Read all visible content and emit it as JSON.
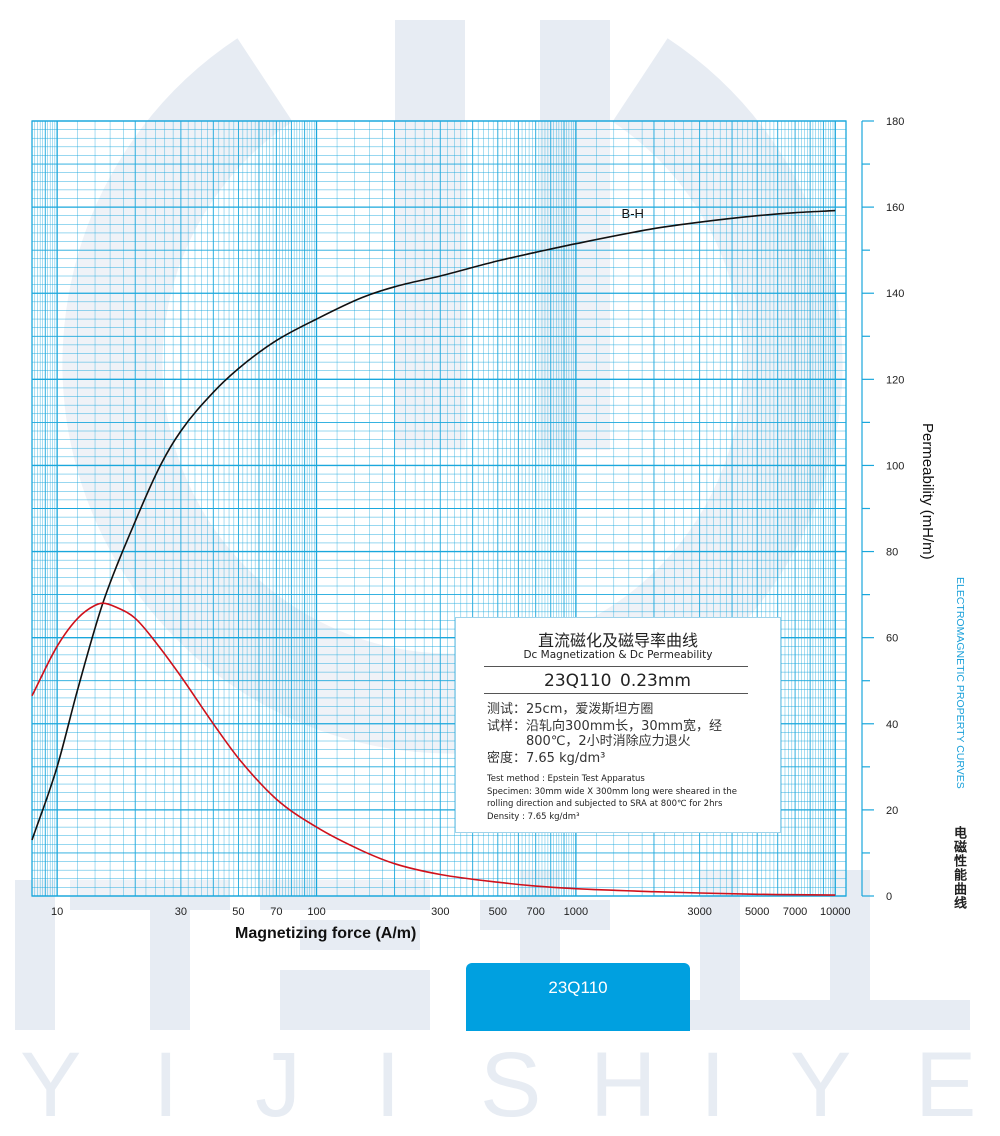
{
  "watermark": {
    "letters": [
      "Y",
      "I",
      "J",
      "I",
      "S",
      "H",
      "I",
      "Y",
      "E"
    ]
  },
  "chart_data": {
    "type": "line",
    "xscale": "log",
    "xlim": [
      8,
      11000
    ],
    "ylim": [
      0,
      180
    ],
    "grid": true,
    "xlabel": "Magnetizing force (A/m)",
    "ylabel": "Permeability (mH/m)",
    "x_ticks": [
      10,
      30,
      50,
      70,
      100,
      300,
      500,
      700,
      1000,
      3000,
      5000,
      7000,
      10000
    ],
    "y_ticks": [
      0,
      20,
      40,
      60,
      80,
      100,
      120,
      140,
      160,
      180
    ],
    "series": [
      {
        "name": "B-H",
        "color": "#111111",
        "x": [
          8,
          10,
          12,
          15,
          20,
          25,
          30,
          40,
          50,
          70,
          100,
          150,
          200,
          300,
          500,
          700,
          1000,
          2000,
          3000,
          5000,
          7000,
          10000
        ],
        "y": [
          13,
          30,
          48,
          68,
          87,
          100,
          108,
          117,
          122.5,
          129,
          134,
          139,
          141.5,
          144,
          147.5,
          149.5,
          151.5,
          155,
          156.5,
          158,
          158.7,
          159.2
        ]
      },
      {
        "name": "",
        "color": "#d0111b",
        "x": [
          8,
          10,
          12,
          14,
          15,
          17,
          20,
          25,
          30,
          40,
          50,
          70,
          100,
          150,
          200,
          300,
          500,
          700,
          1000,
          2000,
          3000,
          5000,
          7000,
          10000
        ],
        "y": [
          46.5,
          58,
          64.5,
          67.5,
          68,
          67,
          64.5,
          57.5,
          51,
          40,
          32,
          22.5,
          16,
          10.5,
          7.5,
          5,
          3.2,
          2.3,
          1.7,
          1,
          0.7,
          0.4,
          0.3,
          0.2
        ]
      }
    ]
  },
  "info": {
    "title_cn": "直流磁化及磁导率曲线",
    "title_en": "Dc Magnetization & Dc Permeability",
    "grade": "23Q110",
    "thickness": "0.23mm",
    "cn_lines": [
      "测试：25cm，爱泼斯坦方圈",
      "试样：沿轧向300mm长，30mm宽，经",
      "　　　800℃，2小时消除应力退火",
      "密度：7.65 kg/dm³"
    ],
    "en_lines": [
      "Test method : Epstein Test Apparatus",
      "Specimen: 30mm wide X 300mm long were sheared in the",
      "rolling direction and subjected to SRA at 800℃ for 2hrs",
      "Density : 7.65 kg/dm³"
    ]
  },
  "side_title_en": "ELECTROMAGNETIC PROPERTY CURVES",
  "side_title_cn": "电磁性能曲线",
  "tag_label": "23Q110",
  "colors": {
    "grid": "#1aa7dc",
    "accent": "#00a0e0",
    "watermark": "#e7ecf3"
  }
}
